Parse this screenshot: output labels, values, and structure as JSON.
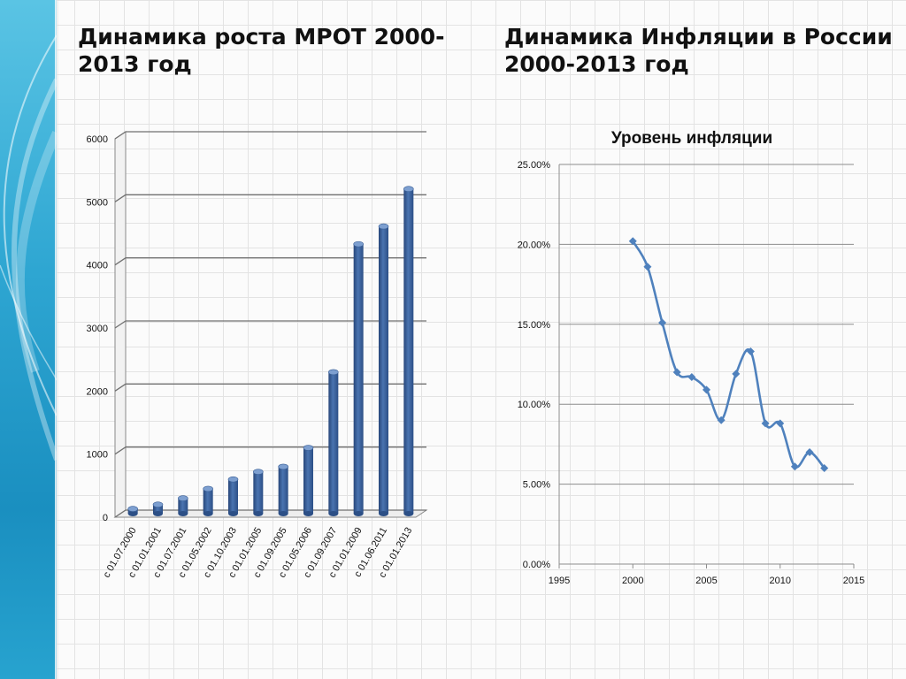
{
  "slide": {
    "title_left": "Динамика роста МРОТ 2000-2013 год",
    "title_right": "Динамика Инфляции в России 2000-2013 год"
  },
  "colors": {
    "bar_fill": "#4a74b0",
    "line": "#4f81bd",
    "stripe": "#2ea6d2"
  },
  "chart_data": [
    {
      "type": "bar",
      "title": "",
      "categories": [
        "с 01.07.2000",
        "с 01.01.2001",
        "с 01.07.2001",
        "с 01.05.2002",
        "с 01.10.2003",
        "с 01.01.2005",
        "с 01.09.2005",
        "с 01.05.2006",
        "с 01.09.2007",
        "с 01.01.2009",
        "с 01.06.2011",
        "с 01.01.2013"
      ],
      "values": [
        132,
        200,
        300,
        450,
        600,
        720,
        800,
        1100,
        2300,
        4330,
        4611,
        5205
      ],
      "ylim": [
        0,
        6000
      ],
      "yticks": [
        "0",
        "1000",
        "2000",
        "3000",
        "4000",
        "5000",
        "6000"
      ],
      "grid": true,
      "legend": "none"
    },
    {
      "type": "line",
      "title": "Уровень инфляции",
      "x": [
        2000,
        2001,
        2002,
        2003,
        2004,
        2005,
        2006,
        2007,
        2008,
        2009,
        2010,
        2011,
        2012,
        2013
      ],
      "y": [
        20.2,
        18.6,
        15.1,
        12.0,
        11.7,
        10.9,
        9.0,
        11.9,
        13.3,
        8.8,
        8.8,
        6.1,
        7.0,
        6.0
      ],
      "xlim": [
        1995,
        2015
      ],
      "ylim": [
        0,
        25
      ],
      "xticks": [
        "1995",
        "2000",
        "2005",
        "2010",
        "2015"
      ],
      "yticks": [
        "0.00%",
        "5.00%",
        "10.00%",
        "15.00%",
        "20.00%",
        "25.00%"
      ],
      "grid": true,
      "legend": "none"
    }
  ]
}
